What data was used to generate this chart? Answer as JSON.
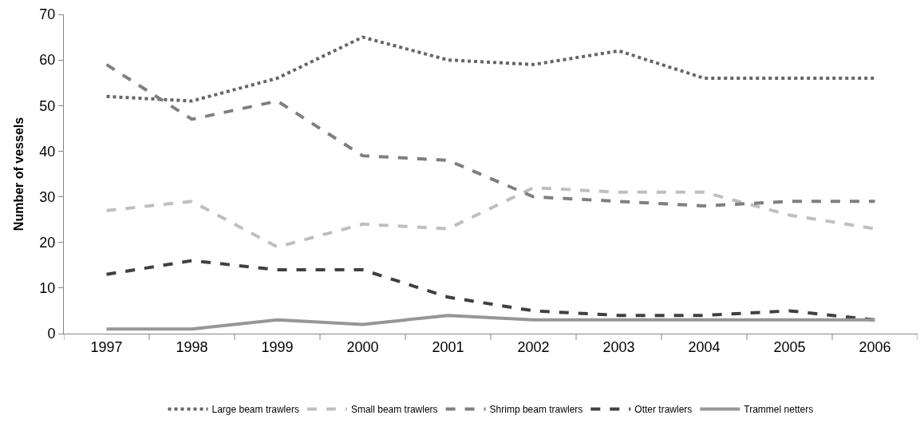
{
  "chart_data": {
    "type": "line",
    "ylabel": "Number of vessels",
    "categories": [
      "1997",
      "1998",
      "1999",
      "2000",
      "2001",
      "2002",
      "2003",
      "2004",
      "2005",
      "2006"
    ],
    "series": [
      {
        "name": "Large beam trawlers",
        "color": "#666666",
        "line_style": "dotted",
        "values": [
          52,
          51,
          56,
          65,
          60,
          59,
          62,
          56,
          56,
          56
        ]
      },
      {
        "name": "Small beam trawlers",
        "color": "#bfbfbf",
        "line_style": "dashed",
        "values": [
          27,
          29,
          19,
          24,
          23,
          32,
          31,
          31,
          26,
          23
        ]
      },
      {
        "name": "Shrimp beam trawlers",
        "color": "#7f7f7f",
        "line_style": "dashed",
        "values": [
          59,
          47,
          51,
          39,
          38,
          30,
          29,
          28,
          29,
          29
        ]
      },
      {
        "name": "Otter trawlers",
        "color": "#404040",
        "line_style": "dashed",
        "values": [
          13,
          16,
          14,
          14,
          8,
          5,
          4,
          4,
          5,
          3
        ]
      },
      {
        "name": "Trammel netters",
        "color": "#969696",
        "line_style": "solid",
        "values": [
          1,
          1,
          3,
          2,
          4,
          3,
          3,
          3,
          3,
          3
        ]
      }
    ],
    "ylim": [
      0,
      70
    ],
    "yticks": [
      0,
      10,
      20,
      30,
      40,
      50,
      60,
      70
    ],
    "legend": "bottom",
    "marker": "none"
  }
}
